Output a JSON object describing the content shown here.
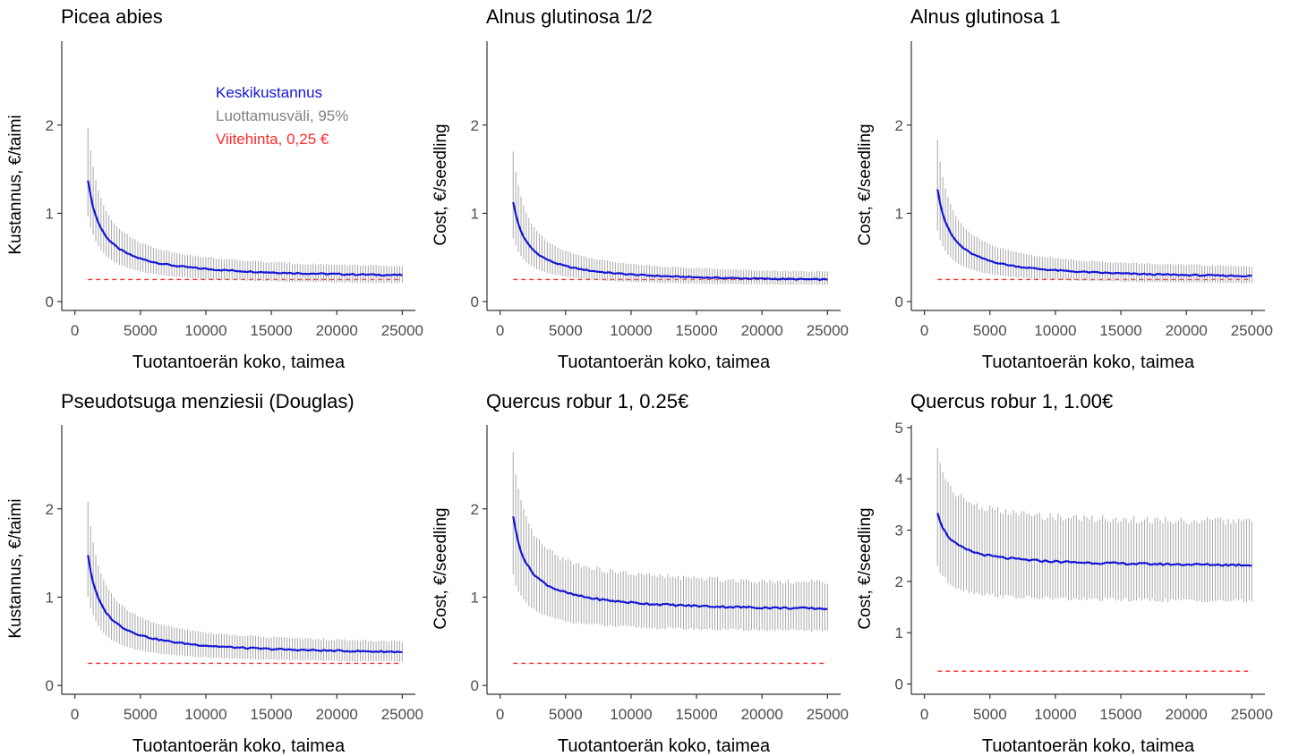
{
  "colors": {
    "mean": "#1515d6",
    "ci": "#a8a8a8",
    "ref": "#ff2a2a",
    "axis": "#333333",
    "tick": "#4d4d4d"
  },
  "legend": {
    "mean": "Keskikustannus",
    "ci": "Luottamusväli, 95%",
    "ref": "Viitehinta, 0,25 €"
  },
  "chart_data": [
    {
      "type": "line",
      "title": "Picea abies",
      "xlabel": "Tuotantoerän koko, taimea",
      "ylabel": "Kustannus, €/taimi",
      "xlim": [
        -1000,
        26000
      ],
      "ylim": [
        -0.1,
        2.95
      ],
      "xticks": [
        0,
        5000,
        10000,
        15000,
        20000,
        25000
      ],
      "yticks": [
        0,
        1,
        2
      ],
      "reference": 0.25,
      "x_start": 1000,
      "x_end": 25000,
      "mean_first": 1.38,
      "mean_last": 0.3,
      "ci_first": [
        0.97,
        1.97
      ],
      "ci_last": [
        0.21,
        0.4
      ],
      "legend_placement": "top-right"
    },
    {
      "type": "line",
      "title": "Alnus glutinosa 1/2",
      "xlabel": "Tuotantoerän koko, taimea",
      "ylabel": "Cost, €/seedling",
      "xlim": [
        -1000,
        26000
      ],
      "ylim": [
        -0.1,
        2.95
      ],
      "xticks": [
        0,
        5000,
        10000,
        15000,
        20000,
        25000
      ],
      "yticks": [
        0,
        1,
        2
      ],
      "reference": 0.25,
      "x_start": 1000,
      "x_end": 25000,
      "mean_first": 1.13,
      "mean_last": 0.25,
      "ci_first": [
        0.72,
        1.7
      ],
      "ci_last": [
        0.19,
        0.34
      ]
    },
    {
      "type": "line",
      "title": "Alnus glutinosa 1",
      "xlabel": "Tuotantoerän koko, taimea",
      "ylabel": "Cost, €/seedling",
      "xlim": [
        -1000,
        26000
      ],
      "ylim": [
        -0.1,
        2.95
      ],
      "xticks": [
        0,
        5000,
        10000,
        15000,
        20000,
        25000
      ],
      "yticks": [
        0,
        1,
        2
      ],
      "reference": 0.25,
      "x_start": 1000,
      "x_end": 25000,
      "mean_first": 1.28,
      "mean_last": 0.29,
      "ci_first": [
        0.8,
        1.83
      ],
      "ci_last": [
        0.21,
        0.4
      ]
    },
    {
      "type": "line",
      "title": "Pseudotsuga menziesii (Douglas)",
      "xlabel": "Tuotantoerän koko, taimea",
      "ylabel": "Kustannus, €/taimi",
      "xlim": [
        -1000,
        26000
      ],
      "ylim": [
        -0.1,
        2.95
      ],
      "xticks": [
        0,
        5000,
        10000,
        15000,
        20000,
        25000
      ],
      "yticks": [
        0,
        1,
        2
      ],
      "reference": 0.25,
      "x_start": 1000,
      "x_end": 25000,
      "mean_first": 1.48,
      "mean_last": 0.38,
      "ci_first": [
        1.0,
        2.07
      ],
      "ci_last": [
        0.27,
        0.5
      ]
    },
    {
      "type": "line",
      "title": "Quercus robur 1, 0.25€",
      "xlabel": "Tuotantoerän koko, taimea",
      "ylabel": "Cost, €/seedling",
      "xlim": [
        -1000,
        26000
      ],
      "ylim": [
        -0.1,
        2.95
      ],
      "xticks": [
        0,
        5000,
        10000,
        15000,
        20000,
        25000
      ],
      "yticks": [
        0,
        1,
        2
      ],
      "reference": 0.25,
      "x_start": 1000,
      "x_end": 25000,
      "mean_first": 1.92,
      "mean_last": 0.87,
      "ci_first": [
        1.25,
        2.63
      ],
      "ci_last": [
        0.62,
        1.17
      ]
    },
    {
      "type": "line",
      "title": "Quercus robur 1, 1.00€",
      "xlabel": "Tuotantoerän koko, taimea",
      "ylabel": "Cost, €/seedling",
      "xlim": [
        -1000,
        26000
      ],
      "ylim": [
        -0.2,
        5.05
      ],
      "xticks": [
        0,
        5000,
        10000,
        15000,
        20000,
        25000
      ],
      "yticks": [
        0,
        1,
        2,
        3,
        4,
        5
      ],
      "reference": 0.25,
      "x_start": 1000,
      "x_end": 25000,
      "mean_first": 3.35,
      "mean_last": 2.32,
      "ci_first": [
        2.3,
        4.55
      ],
      "ci_last": [
        1.62,
        3.17
      ]
    }
  ]
}
